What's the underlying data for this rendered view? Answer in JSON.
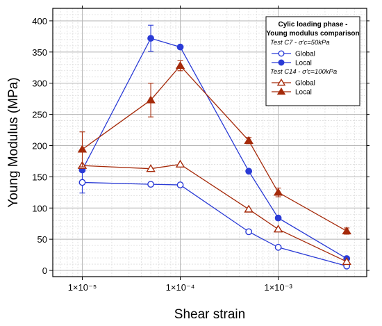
{
  "chart_data": {
    "type": "line",
    "x_scale": "log",
    "xlim": [
      5e-06,
      0.008
    ],
    "ylim": [
      -10,
      420
    ],
    "grid": true,
    "xlabel": "Shear strain",
    "ylabel": "Young Modulus (MPa)",
    "x_ticks": [
      1e-05,
      0.0001,
      0.001
    ],
    "x_tick_labels": [
      "1×10⁻⁵",
      "1×10⁻⁴",
      "1×10⁻³"
    ],
    "y_ticks": [
      0,
      50,
      100,
      150,
      200,
      250,
      300,
      350,
      400
    ],
    "y_tick_labels": [
      "0",
      "50",
      "100",
      "150",
      "200",
      "250",
      "300",
      "350",
      "400"
    ],
    "legend": {
      "placement": "top-right",
      "title_line1": "Cylic loading phase -",
      "title_line2": "Young modulus comparison",
      "group1": "Test C7 - σ'c=50kPa",
      "group2": "Test C14 - σ'c=100kPa"
    },
    "series": [
      {
        "name": "Global",
        "group": "Test C7 - σ'c=50kPa",
        "color": "#2a3bd6",
        "marker": "circle-open",
        "x": [
          1e-05,
          5e-05,
          0.0001,
          0.0005,
          0.001,
          0.005
        ],
        "y": [
          141,
          138,
          137,
          62,
          37,
          7
        ],
        "err": [
          17,
          0,
          0,
          0,
          0,
          0
        ]
      },
      {
        "name": "Local",
        "group": "Test C7 - σ'c=50kPa",
        "color": "#2a3bd6",
        "marker": "circle-filled",
        "x": [
          1e-05,
          5e-05,
          0.0001,
          0.0005,
          0.001,
          0.005
        ],
        "y": [
          161,
          372,
          358,
          159,
          84,
          19
        ],
        "err": [
          0,
          21,
          0,
          0,
          0,
          0
        ]
      },
      {
        "name": "Global",
        "group": "Test C14 - σ'c=100kPa",
        "color": "#a52a0a",
        "marker": "triangle-open",
        "x": [
          1e-05,
          5e-05,
          0.0001,
          0.0005,
          0.001,
          0.005
        ],
        "y": [
          168,
          163,
          170,
          98,
          66,
          14
        ],
        "err": [
          0,
          0,
          0,
          0,
          0,
          0
        ]
      },
      {
        "name": "Local",
        "group": "Test C14 - σ'c=100kPa",
        "color": "#a52a0a",
        "marker": "triangle-filled",
        "x": [
          1e-05,
          5e-05,
          0.0001,
          0.0005,
          0.001,
          0.005
        ],
        "y": [
          194,
          273,
          328,
          208,
          125,
          63
        ],
        "err": [
          28,
          27,
          8,
          5,
          7,
          5
        ]
      }
    ]
  }
}
